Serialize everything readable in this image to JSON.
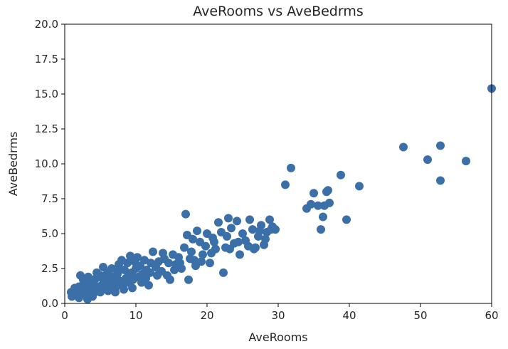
{
  "chart_data": {
    "type": "scatter",
    "title": "AveRooms vs AveBedrms",
    "xlabel": "AveRooms",
    "ylabel": "AveBedrms",
    "xlim": [
      0,
      60
    ],
    "ylim": [
      0,
      20
    ],
    "xticks": [
      "0",
      "10",
      "20",
      "30",
      "40",
      "50",
      "60"
    ],
    "yticks": [
      "0.0",
      "2.5",
      "5.0",
      "7.5",
      "10.0",
      "12.5",
      "15.0",
      "17.5",
      "20.0"
    ],
    "grid": false,
    "legend": "none",
    "marker_color": "#3a6fa8",
    "points": [
      [
        0.9,
        0.8
      ],
      [
        1.2,
        0.6
      ],
      [
        1.5,
        1.0
      ],
      [
        1.8,
        0.9
      ],
      [
        2.0,
        1.2
      ],
      [
        2.2,
        2.0
      ],
      [
        2.5,
        0.7
      ],
      [
        2.8,
        1.4
      ],
      [
        3.0,
        1.0
      ],
      [
        3.2,
        0.3
      ],
      [
        3.4,
        1.6
      ],
      [
        3.6,
        0.9
      ],
      [
        3.8,
        1.1
      ],
      [
        4.0,
        1.5
      ],
      [
        4.2,
        0.8
      ],
      [
        4.4,
        1.8
      ],
      [
        4.6,
        1.2
      ],
      [
        4.8,
        0.9
      ],
      [
        5.0,
        2.0
      ],
      [
        5.2,
        1.3
      ],
      [
        5.4,
        2.6
      ],
      [
        5.6,
        1.1
      ],
      [
        5.8,
        1.7
      ],
      [
        6.0,
        2.2
      ],
      [
        6.2,
        1.0
      ],
      [
        6.4,
        1.5
      ],
      [
        6.6,
        2.5
      ],
      [
        6.8,
        1.4
      ],
      [
        7.0,
        1.9
      ],
      [
        7.2,
        1.2
      ],
      [
        7.4,
        2.1
      ],
      [
        7.6,
        2.8
      ],
      [
        7.8,
        1.6
      ],
      [
        8.0,
        3.1
      ],
      [
        8.2,
        1.3
      ],
      [
        8.4,
        2.4
      ],
      [
        8.6,
        1.8
      ],
      [
        8.8,
        2.9
      ],
      [
        9.0,
        1.5
      ],
      [
        9.2,
        3.4
      ],
      [
        9.4,
        2.2
      ],
      [
        9.6,
        1.7
      ],
      [
        9.8,
        3.0
      ],
      [
        10.0,
        2.5
      ],
      [
        10.3,
        1.9
      ],
      [
        10.6,
        2.7
      ],
      [
        10.9,
        2.1
      ],
      [
        11.2,
        3.1
      ],
      [
        11.5,
        2.4
      ],
      [
        11.8,
        1.3
      ],
      [
        12.1,
        2.9
      ],
      [
        12.4,
        3.7
      ],
      [
        12.8,
        2.6
      ],
      [
        13.2,
        3.0
      ],
      [
        13.6,
        2.3
      ],
      [
        14.0,
        3.2
      ],
      [
        14.4,
        2.0
      ],
      [
        14.8,
        1.7
      ],
      [
        15.2,
        3.5
      ],
      [
        15.6,
        2.8
      ],
      [
        16.0,
        3.3
      ],
      [
        16.4,
        2.5
      ],
      [
        16.8,
        4.0
      ],
      [
        17.0,
        6.4
      ],
      [
        17.2,
        4.9
      ],
      [
        17.4,
        1.7
      ],
      [
        17.8,
        3.7
      ],
      [
        18.2,
        3.1
      ],
      [
        18.6,
        5.2
      ],
      [
        19.0,
        4.4
      ],
      [
        19.4,
        3.5
      ],
      [
        19.8,
        4.1
      ],
      [
        20.0,
        5.0
      ],
      [
        20.4,
        2.9
      ],
      [
        20.8,
        4.7
      ],
      [
        21.2,
        3.9
      ],
      [
        21.6,
        5.8
      ],
      [
        22.0,
        5.1
      ],
      [
        22.3,
        2.2
      ],
      [
        22.6,
        4.0
      ],
      [
        23.0,
        6.1
      ],
      [
        23.4,
        5.4
      ],
      [
        23.8,
        4.3
      ],
      [
        24.2,
        5.9
      ],
      [
        24.6,
        3.5
      ],
      [
        25.0,
        5.0
      ],
      [
        25.4,
        4.5
      ],
      [
        26.0,
        6.0
      ],
      [
        26.4,
        5.3
      ],
      [
        26.8,
        4.0
      ],
      [
        27.2,
        4.8
      ],
      [
        27.6,
        5.6
      ],
      [
        28.0,
        4.2
      ],
      [
        28.4,
        5.1
      ],
      [
        28.8,
        6.0
      ],
      [
        29.2,
        5.5
      ],
      [
        29.6,
        5.3
      ],
      [
        31.0,
        8.5
      ],
      [
        31.8,
        9.7
      ],
      [
        34.0,
        6.8
      ],
      [
        34.6,
        7.1
      ],
      [
        35.0,
        7.9
      ],
      [
        35.6,
        7.0
      ],
      [
        36.0,
        5.3
      ],
      [
        36.3,
        6.2
      ],
      [
        36.5,
        7.0
      ],
      [
        36.8,
        8.0
      ],
      [
        37.0,
        8.1
      ],
      [
        37.2,
        7.2
      ],
      [
        38.8,
        9.2
      ],
      [
        39.6,
        6.0
      ],
      [
        41.4,
        8.4
      ],
      [
        47.6,
        11.2
      ],
      [
        51.0,
        10.3
      ],
      [
        52.8,
        11.3
      ],
      [
        52.8,
        8.8
      ],
      [
        56.4,
        10.2
      ],
      [
        60.0,
        15.4
      ],
      [
        1.0,
        0.5
      ],
      [
        1.4,
        1.1
      ],
      [
        2.0,
        0.4
      ],
      [
        2.6,
        1.7
      ],
      [
        3.0,
        0.6
      ],
      [
        3.3,
        1.9
      ],
      [
        3.9,
        0.5
      ],
      [
        4.5,
        2.2
      ],
      [
        5.0,
        0.8
      ],
      [
        5.5,
        1.6
      ],
      [
        6.1,
        0.9
      ],
      [
        6.6,
        1.9
      ],
      [
        7.1,
        0.8
      ],
      [
        7.7,
        2.4
      ],
      [
        8.3,
        1.0
      ],
      [
        8.9,
        1.9
      ],
      [
        9.5,
        1.1
      ],
      [
        10.2,
        3.3
      ],
      [
        10.8,
        1.5
      ],
      [
        11.4,
        1.8
      ],
      [
        12.0,
        2.2
      ],
      [
        13.0,
        2.0
      ],
      [
        13.8,
        3.6
      ],
      [
        14.6,
        2.9
      ],
      [
        15.4,
        2.4
      ],
      [
        16.2,
        2.9
      ],
      [
        17.6,
        3.2
      ],
      [
        18.0,
        4.6
      ],
      [
        18.4,
        2.7
      ],
      [
        19.2,
        3.0
      ],
      [
        20.6,
        3.6
      ],
      [
        21.0,
        4.4
      ],
      [
        22.8,
        4.8
      ],
      [
        23.2,
        3.9
      ],
      [
        24.4,
        4.4
      ],
      [
        25.8,
        4.1
      ],
      [
        26.6,
        3.9
      ],
      [
        27.4,
        5.2
      ],
      [
        28.2,
        4.6
      ],
      [
        29.0,
        5.3
      ]
    ]
  }
}
